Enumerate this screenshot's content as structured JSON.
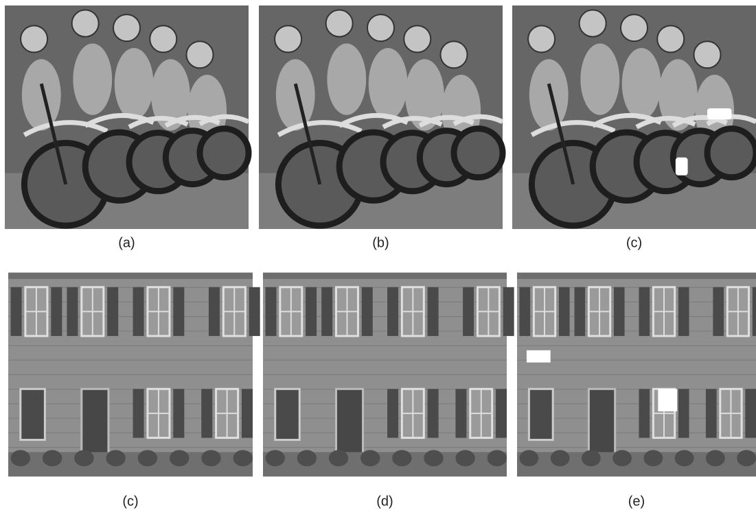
{
  "figure": {
    "panels": [
      {
        "caption": "(a)"
      },
      {
        "caption": "(b)"
      },
      {
        "caption": "(c)"
      },
      {
        "caption": "(c)"
      },
      {
        "caption": "(d)"
      },
      {
        "caption": "(e)"
      }
    ]
  }
}
